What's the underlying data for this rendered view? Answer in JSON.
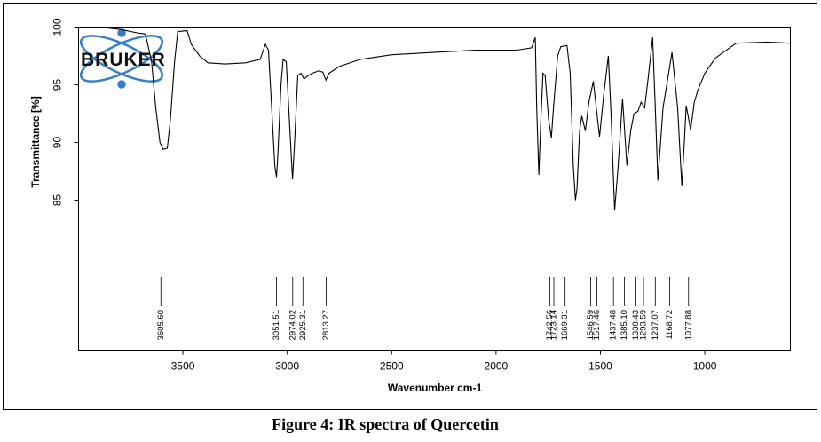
{
  "chart_data": {
    "type": "line",
    "caption": "Figure 4: IR spectra of Quercetin",
    "logo": "BRUKER",
    "x_label": "Wavenumber cm-1",
    "y_label": "Transmittance [%]",
    "xlim": [
      4000,
      590
    ],
    "ylim": [
      72,
      100
    ],
    "xticks": [
      3500,
      3000,
      2500,
      2000,
      1500,
      1000
    ],
    "yticks": [
      100,
      95,
      90,
      85
    ],
    "color": "#000000",
    "x": [
      4000,
      3900,
      3800,
      3720,
      3680,
      3650,
      3630,
      3610,
      3595,
      3575,
      3560,
      3540,
      3525,
      3480,
      3460,
      3420,
      3380,
      3300,
      3200,
      3130,
      3105,
      3090,
      3075,
      3060,
      3052,
      3045,
      3030,
      3020,
      3005,
      2990,
      2975,
      2965,
      2950,
      2935,
      2920,
      2900,
      2880,
      2850,
      2830,
      2815,
      2800,
      2750,
      2650,
      2500,
      2300,
      2100,
      1900,
      1830,
      1812,
      1805,
      1795,
      1785,
      1775,
      1765,
      1748,
      1735,
      1725,
      1705,
      1690,
      1660,
      1645,
      1630,
      1620,
      1612,
      1600,
      1589,
      1572,
      1555,
      1534,
      1520,
      1504,
      1485,
      1462,
      1448,
      1432,
      1415,
      1394,
      1373,
      1355,
      1339,
      1320,
      1305,
      1288,
      1271,
      1250,
      1237,
      1225,
      1200,
      1157,
      1130,
      1110,
      1098,
      1089,
      1068,
      1050,
      1034,
      1000,
      950,
      850,
      700,
      590
    ],
    "values": [
      100,
      100,
      99.8,
      99.5,
      99.4,
      97,
      93,
      90,
      89.4,
      89.5,
      92,
      97,
      99.6,
      99.7,
      98.5,
      97.5,
      96.9,
      96.8,
      96.9,
      97.2,
      98.5,
      98,
      93,
      88,
      87,
      89,
      95,
      97.2,
      97,
      92,
      86.8,
      90,
      95.8,
      96,
      95.5,
      95.8,
      96,
      96.2,
      96.1,
      95.4,
      96,
      96.6,
      97.2,
      97.6,
      97.8,
      98,
      98,
      98.2,
      99.1,
      93,
      87.2,
      92,
      96,
      95.8,
      92,
      90.4,
      93,
      97.5,
      98.3,
      98.4,
      96,
      88,
      85,
      86,
      91,
      92.3,
      91,
      93.5,
      95.3,
      93,
      90.5,
      94,
      97.5,
      92,
      84.1,
      88,
      93.8,
      88,
      91,
      92.5,
      92.7,
      93.5,
      93,
      95.6,
      99.1,
      93,
      86.7,
      93,
      97.8,
      93,
      86.2,
      90,
      93.2,
      91.1,
      93.5,
      94.5,
      96,
      97.3,
      98.6,
      98.7,
      98.6
    ],
    "peaks": [
      {
        "value": 3605.6,
        "label": "3605.60"
      },
      {
        "value": 3051.51,
        "label": "3051.51"
      },
      {
        "value": 2974.02,
        "label": "2974.02"
      },
      {
        "value": 2925.31,
        "label": "2925.31"
      },
      {
        "value": 2813.27,
        "label": "2813.27"
      },
      {
        "value": 1742.56,
        "label": "1742.56"
      },
      {
        "value": 1723.14,
        "label": "1723.14"
      },
      {
        "value": 1669.31,
        "label": "1669.31"
      },
      {
        "value": 1546.59,
        "label": "1546.59"
      },
      {
        "value": 1517.46,
        "label": "1517.46"
      },
      {
        "value": 1437.48,
        "label": "1437.48"
      },
      {
        "value": 1385.1,
        "label": "1385.10"
      },
      {
        "value": 1330.43,
        "label": "1330.43"
      },
      {
        "value": 1293.59,
        "label": "1293.59"
      },
      {
        "value": 1237.07,
        "label": "1237.07"
      },
      {
        "value": 1168.72,
        "label": "1168.72"
      },
      {
        "value": 1077.88,
        "label": "1077.88"
      }
    ]
  }
}
